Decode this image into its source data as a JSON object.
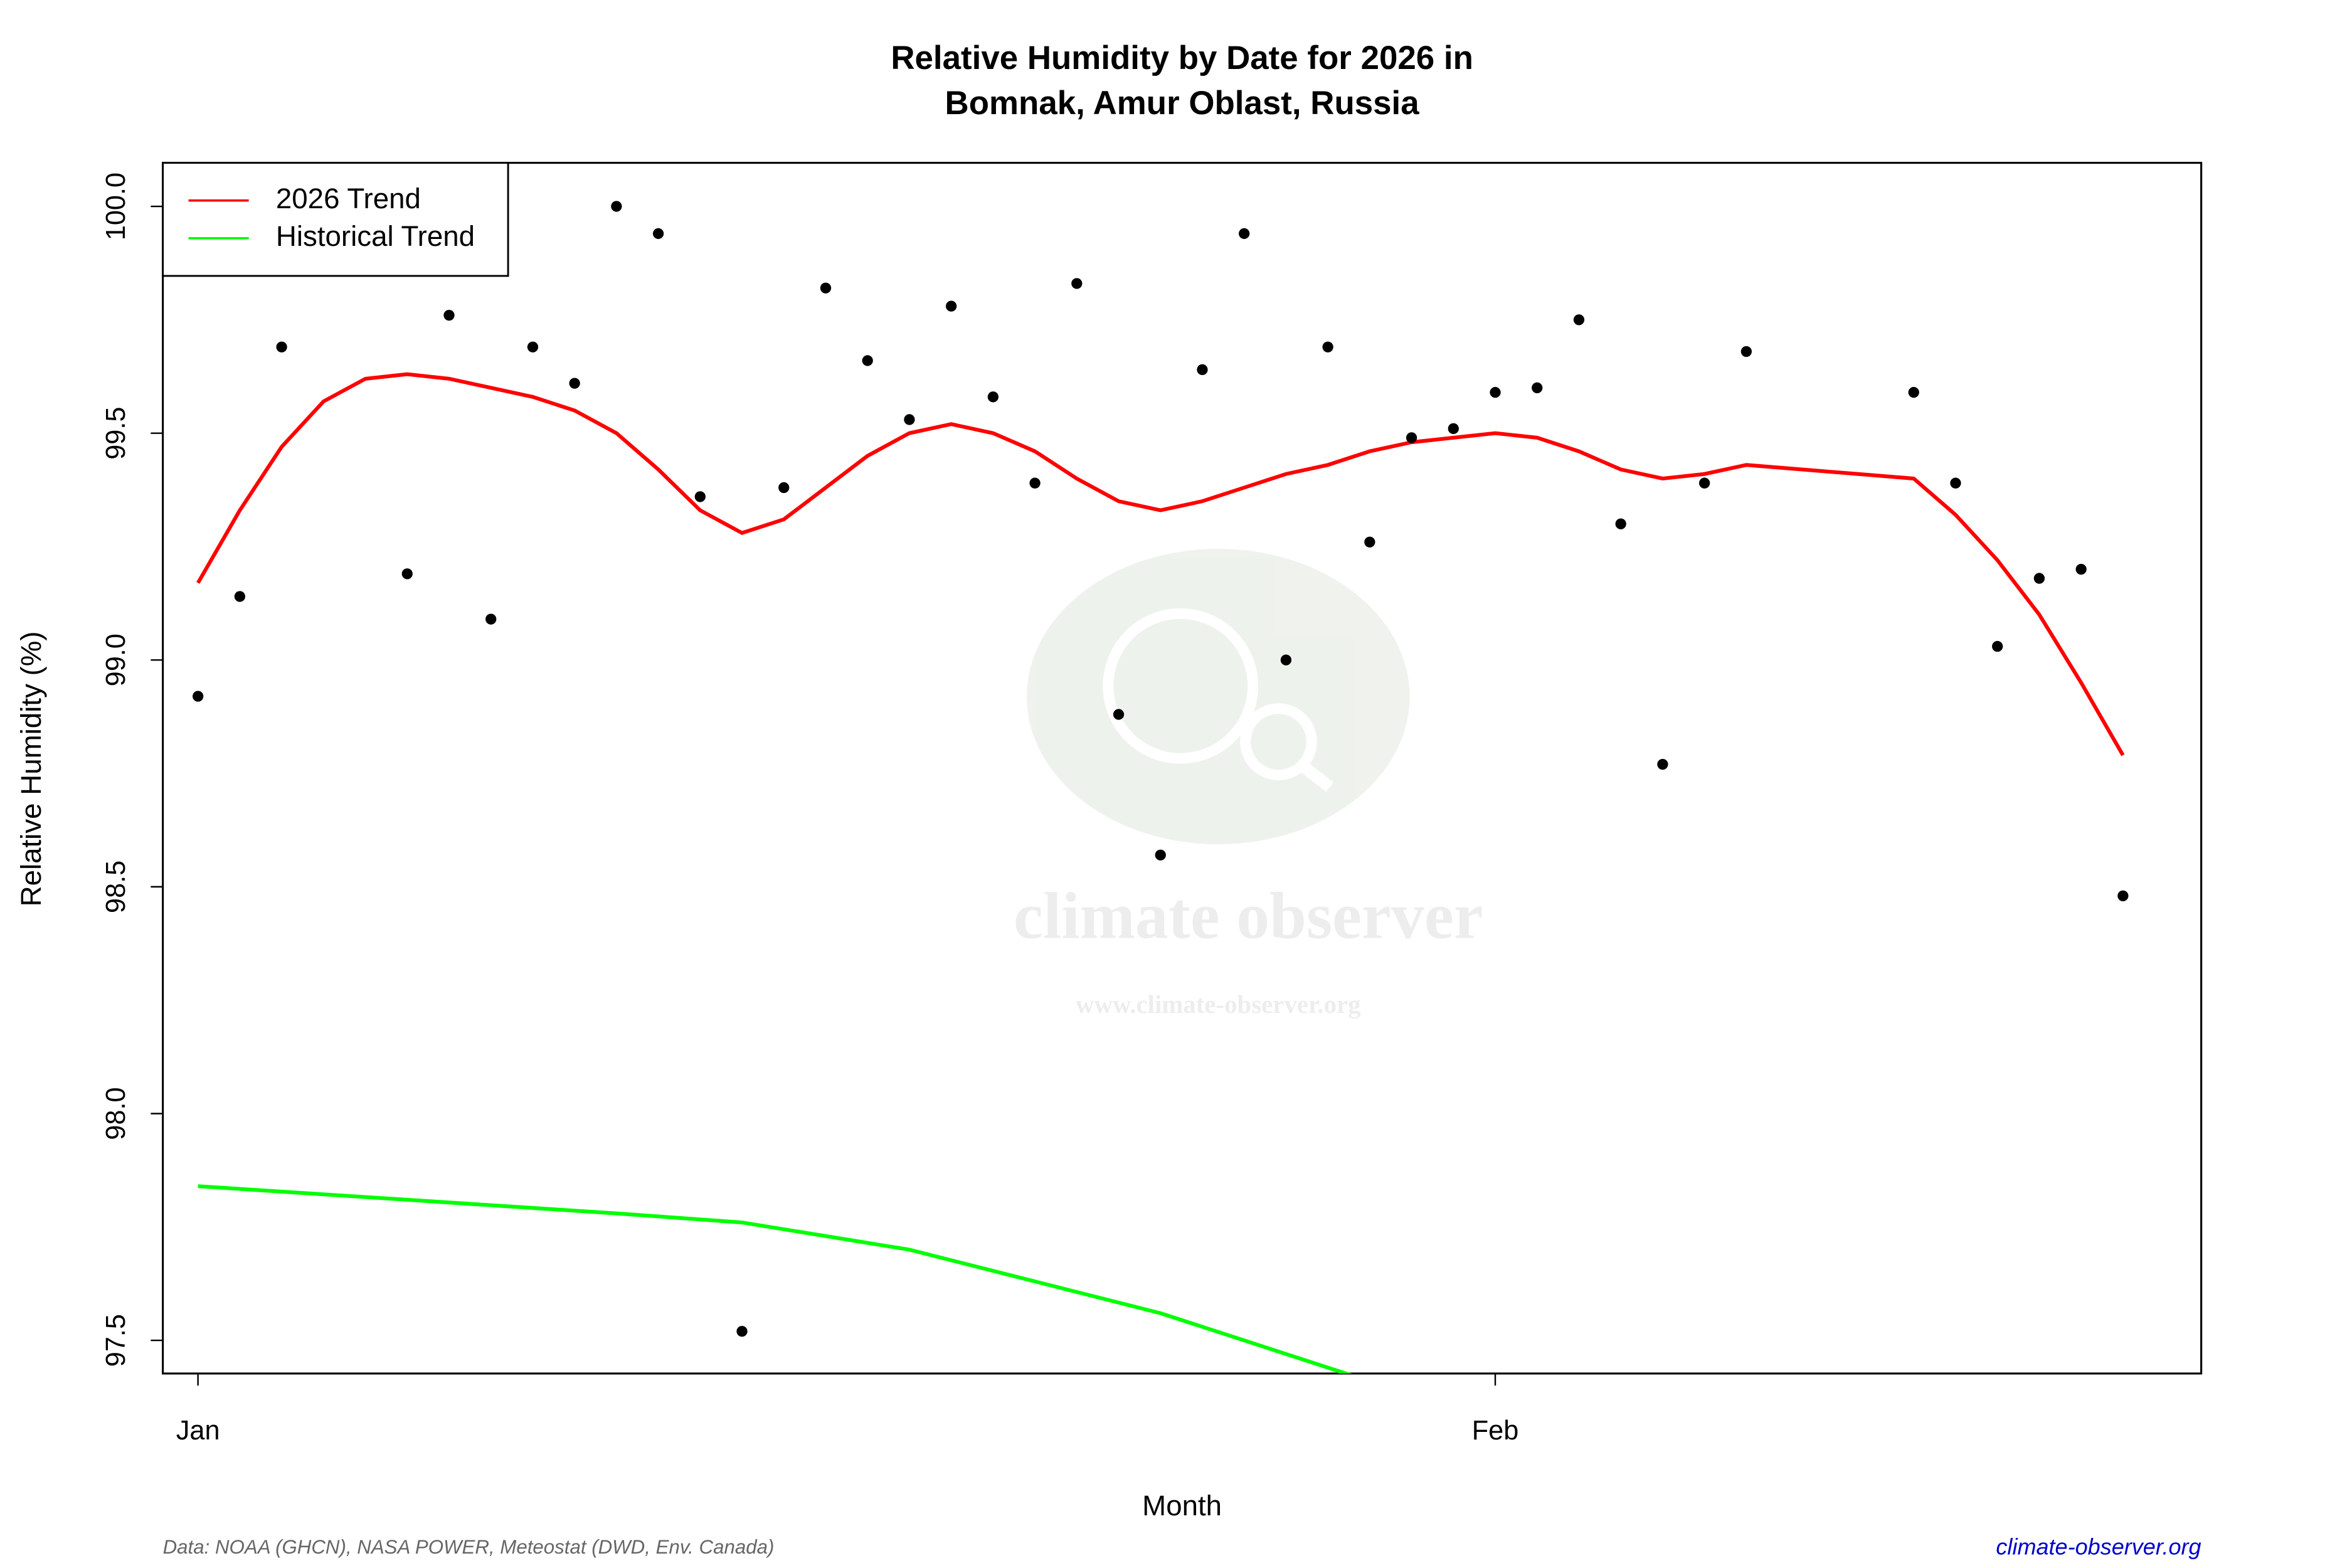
{
  "chart_data": {
    "type": "line",
    "title": "Relative Humidity by Date for 2026 in",
    "subtitle": "Bomnak, Amur Oblast, Russia",
    "x_label": "Month",
    "y_label": "Relative Humidity (%)",
    "xlim": [
      0.16,
      48.87
    ],
    "xticks": [
      {
        "value": 1,
        "label": "Jan"
      },
      {
        "value": 32,
        "label": "Feb"
      }
    ],
    "ylim": [
      97.427,
      100.096
    ],
    "yticks": [
      {
        "value": 97.5,
        "label": "97.5"
      },
      {
        "value": 98,
        "label": "98.0"
      },
      {
        "value": 98.5,
        "label": "98.5"
      },
      {
        "value": 99,
        "label": "99.0"
      },
      {
        "value": 99.5,
        "label": "99.5"
      },
      {
        "value": 100,
        "label": "100.0"
      }
    ],
    "legend": "topleft",
    "series": [
      {
        "name": "2026 Trend",
        "color": "#ff0000",
        "x": [
          1,
          2,
          3,
          4,
          5,
          6,
          7,
          8,
          9,
          10,
          11,
          12,
          13,
          14,
          15,
          16,
          17,
          18,
          19,
          20,
          21,
          22,
          23,
          24,
          25,
          26,
          27,
          28,
          29,
          30,
          31,
          32,
          33,
          34,
          35,
          36,
          37,
          38,
          42,
          43,
          44,
          45,
          46,
          47
        ],
        "values": [
          99.17,
          99.33,
          99.47,
          99.57,
          99.62,
          99.63,
          99.62,
          99.6,
          99.58,
          99.55,
          99.5,
          99.42,
          99.33,
          99.28,
          99.31,
          99.38,
          99.45,
          99.5,
          99.52,
          99.5,
          99.46,
          99.4,
          99.35,
          99.33,
          99.35,
          99.38,
          99.41,
          99.43,
          99.46,
          99.48,
          99.49,
          99.5,
          99.49,
          99.46,
          99.42,
          99.4,
          99.41,
          99.43,
          99.4,
          99.32,
          99.22,
          99.1,
          98.95,
          98.79
        ]
      },
      {
        "name": "Historical Trend",
        "color": "#00ff00",
        "x": [
          1,
          6,
          11,
          14,
          18,
          21,
          24,
          27,
          29
        ],
        "values": [
          97.84,
          97.81,
          97.78,
          97.76,
          97.7,
          97.63,
          97.56,
          97.47,
          97.41
        ]
      }
    ],
    "points": {
      "color": "#000000",
      "x": [
        1,
        2,
        3,
        6,
        7,
        8,
        9,
        10,
        11,
        12,
        13,
        14,
        15,
        16,
        17,
        18,
        19,
        20,
        21,
        22,
        23,
        24,
        25,
        26,
        27,
        28,
        29,
        30,
        31,
        32,
        33,
        34,
        35,
        36,
        37,
        38,
        42,
        43,
        44,
        45,
        46,
        47
      ],
      "values": [
        98.92,
        99.14,
        99.69,
        99.19,
        99.76,
        99.09,
        99.69,
        99.61,
        100.0,
        99.94,
        99.36,
        97.52,
        99.38,
        99.82,
        99.66,
        99.53,
        99.78,
        99.58,
        99.39,
        99.83,
        98.88,
        98.57,
        99.64,
        99.94,
        99.0,
        99.69,
        99.26,
        99.49,
        99.51,
        99.59,
        99.6,
        99.75,
        99.3,
        98.77,
        99.39,
        99.68,
        99.59,
        99.39,
        99.03,
        99.18,
        99.2,
        98.48
      ]
    },
    "watermark": {
      "name": "climate observer",
      "url": "www.climate-observer.org"
    },
    "source": "Data: NOAA (GHCN), NASA POWER, Meteostat (DWD, Env. Canada)",
    "site": "climate-observer.org"
  }
}
